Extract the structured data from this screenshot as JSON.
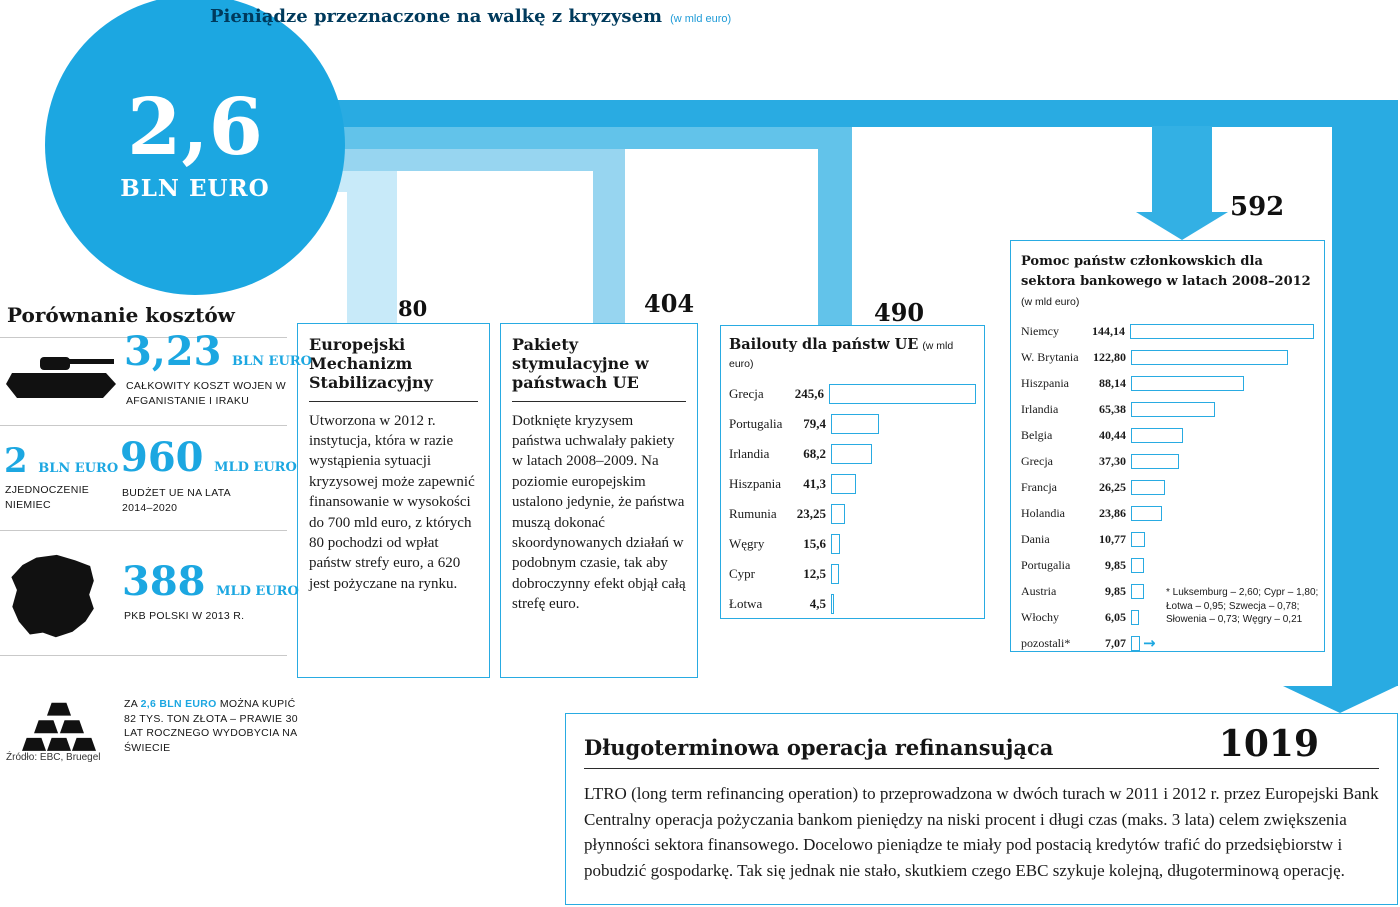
{
  "colors": {
    "accent": "#1ca7e1",
    "band_bright": "#29abe2",
    "band_mid": "#62c3ea",
    "band_light": "#97d5f0",
    "band_lightest": "#c8eaf9",
    "navy": "#003a5c"
  },
  "header": {
    "title": "Pieniądze przeznaczone na walkę z kryzysem",
    "unit": "(w mld euro)"
  },
  "total": {
    "value": "2,6",
    "unit": "BLN EURO"
  },
  "comparison": {
    "title": "Porównanie kosztów",
    "war": {
      "value": "3,23",
      "unit": "BLN EURO",
      "label": "CAŁKOWITY KOSZT WOJEN W AFGANISTANIE I IRAKU"
    },
    "germany": {
      "value": "2",
      "unit": "BLN EURO",
      "label": "ZJEDNOCZENIE NIEMIEC"
    },
    "eu_budget": {
      "value": "960",
      "unit": "MLD EURO",
      "label": "BUDŻET UE NA LATA 2014–2020"
    },
    "poland_gdp": {
      "value": "388",
      "unit": "MLD EURO",
      "label": "PKB POLSKI W 2013 R."
    },
    "gold": {
      "prefix": "ZA ",
      "highlight": "2,6 BLN EURO",
      "suffix": " MOŻNA KUPIĆ 82 TYS. TON ZŁOTA – PRAWIE 30 LAT ROCZNEGO WYDOBYCIA NA ŚWIECIE"
    },
    "source": "Źródło: EBC, Bruegel"
  },
  "esm": {
    "amount": "80",
    "title": "Europejski Mechanizm Stabilizacyjny",
    "body": "Utworzona w 2012 r. instytucja, która w razie wystąpienia sytuacji kryzysowej może zapewnić finansowanie w wysokości do 700 mld euro, z których 80 pochodzi od wpłat państw strefy euro, a 620 jest pożyczane na rynku."
  },
  "stimulus": {
    "amount": "404",
    "title": "Pakiety stymulacyjne w państwach UE",
    "body": "Dotknięte kryzysem państwa uchwalały pakiety w latach 2008–2009. Na poziomie europejskim ustalono jedynie, że państwa muszą dokonać skoordynowanych działań w podobnym czasie, tak aby dobroczynny efekt objął całą strefę euro."
  },
  "bailouts": {
    "amount": "490",
    "title": "Bailouty dla państw UE",
    "unit": "(w mld euro)",
    "bar_scale": 0.6,
    "rows": [
      {
        "country": "Grecja",
        "label": "245,6",
        "value": 245.6
      },
      {
        "country": "Portugalia",
        "label": "79,4",
        "value": 79.4
      },
      {
        "country": "Irlandia",
        "label": "68,2",
        "value": 68.2
      },
      {
        "country": "Hiszpania",
        "label": "41,3",
        "value": 41.3
      },
      {
        "country": "Rumunia",
        "label": "23,25",
        "value": 23.25
      },
      {
        "country": "Węgry",
        "label": "15,6",
        "value": 15.6
      },
      {
        "country": "Cypr",
        "label": "12,5",
        "value": 12.5
      },
      {
        "country": "Łotwa",
        "label": "4,5",
        "value": 4.5
      }
    ]
  },
  "bank_aid": {
    "amount": "592",
    "title": "Pomoc państw członkowskich dla sektora bankowego w latach 2008–2012",
    "unit": "(w mld euro)",
    "bar_scale": 1.28,
    "rows": [
      {
        "country": "Niemcy",
        "label": "144,14",
        "value": 144.14
      },
      {
        "country": "W. Brytania",
        "label": "122,80",
        "value": 122.8
      },
      {
        "country": "Hiszpania",
        "label": "88,14",
        "value": 88.14
      },
      {
        "country": "Irlandia",
        "label": "65,38",
        "value": 65.38
      },
      {
        "country": "Belgia",
        "label": "40,44",
        "value": 40.44
      },
      {
        "country": "Grecja",
        "label": "37,30",
        "value": 37.3
      },
      {
        "country": "Francja",
        "label": "26,25",
        "value": 26.25
      },
      {
        "country": "Holandia",
        "label": "23,86",
        "value": 23.86
      },
      {
        "country": "Dania",
        "label": "10,77",
        "value": 10.77
      },
      {
        "country": "Portugalia",
        "label": "9,85",
        "value": 9.85
      },
      {
        "country": "Austria",
        "label": "9,85",
        "value": 9.85
      },
      {
        "country": "Włochy",
        "label": "6,05",
        "value": 6.05
      },
      {
        "country": "pozostali*",
        "label": "7,07",
        "value": 7.07,
        "arrow": true
      }
    ],
    "footnote": "* Luksemburg – 2,60; Cypr – 1,80; Łotwa – 0,95; Szwecja – 0,78; Słowenia – 0,73; Węgry – 0,21"
  },
  "ltro": {
    "amount": "1019",
    "title": "Długoterminowa operacja refinansująca",
    "body": "LTRO (long term refinancing operation) to przeprowadzona w dwóch turach w 2011 i 2012 r. przez Europejski Bank Centralny operacja pożyczania bankom pieniędzy na niski procent i długi czas (maks. 3 lata) celem zwiększenia płynności sektora finansowego. Docelowo pieniądze te miały pod postacią kredytów trafić do przedsiębiorstw i pobudzić gospodarkę. Tak się jednak nie stało, skutkiem czego EBC szykuje kolejną, długoterminową operację."
  },
  "chart_data": [
    {
      "type": "sankey",
      "title": "Pieniądze przeznaczone na walkę z kryzysem",
      "unit": "mld euro",
      "total_bln_euro": 2.6,
      "flows": [
        {
          "target": "Europejski Mechanizm Stabilizacyjny",
          "value": 80
        },
        {
          "target": "Pakiety stymulacyjne w państwach UE",
          "value": 404
        },
        {
          "target": "Bailouty dla państw UE",
          "value": 490
        },
        {
          "target": "Pomoc państw członkowskich dla sektora bankowego 2008–2012",
          "value": 592
        },
        {
          "target": "Długoterminowa operacja refinansująca (LTRO)",
          "value": 1019
        }
      ]
    },
    {
      "type": "bar",
      "orientation": "horizontal",
      "title": "Bailouty dla państw UE (w mld euro)",
      "categories": [
        "Grecja",
        "Portugalia",
        "Irlandia",
        "Hiszpania",
        "Rumunia",
        "Węgry",
        "Cypr",
        "Łotwa"
      ],
      "values": [
        245.6,
        79.4,
        68.2,
        41.3,
        23.25,
        15.6,
        12.5,
        4.5
      ],
      "xlim": [
        0,
        250
      ],
      "grid": false,
      "legend": false
    },
    {
      "type": "bar",
      "orientation": "horizontal",
      "title": "Pomoc państw członkowskich dla sektora bankowego w latach 2008–2012 (w mld euro)",
      "categories": [
        "Niemcy",
        "W. Brytania",
        "Hiszpania",
        "Irlandia",
        "Belgia",
        "Grecja",
        "Francja",
        "Holandia",
        "Dania",
        "Portugalia",
        "Austria",
        "Włochy",
        "pozostali*"
      ],
      "values": [
        144.14,
        122.8,
        88.14,
        65.38,
        40.44,
        37.3,
        26.25,
        23.86,
        10.77,
        9.85,
        9.85,
        6.05,
        7.07
      ],
      "footnote": "* Luksemburg – 2,60; Cypr – 1,80; Łotwa – 0,95; Szwecja – 0,78; Słowenia – 0,73; Węgry – 0,21",
      "xlim": [
        0,
        150
      ],
      "grid": false,
      "legend": false
    }
  ]
}
